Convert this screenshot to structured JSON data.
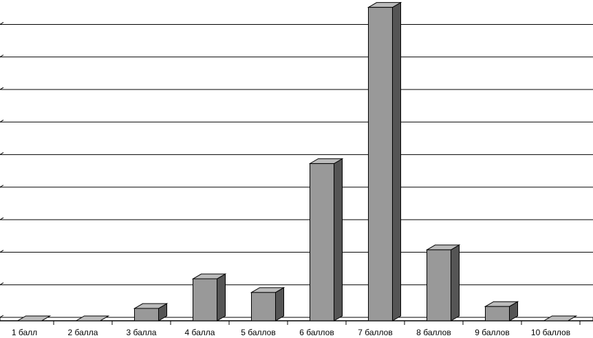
{
  "chart_data": {
    "type": "bar3d",
    "categories": [
      "1 балл",
      "2 балла",
      "3 балла",
      "4 балла",
      "5 баллов",
      "6 баллов",
      "7 баллов",
      "8 баллов",
      "9 баллов",
      "10 баллов"
    ],
    "values": [
      0,
      0,
      0.38,
      1.29,
      0.87,
      4.83,
      9.63,
      2.18,
      0.44,
      0
    ],
    "color": "#999999",
    "ylim": [
      0,
      9.75
    ],
    "yticks": [
      0,
      1,
      2,
      3,
      4,
      5,
      6,
      7,
      8,
      9
    ],
    "grid": true
  }
}
